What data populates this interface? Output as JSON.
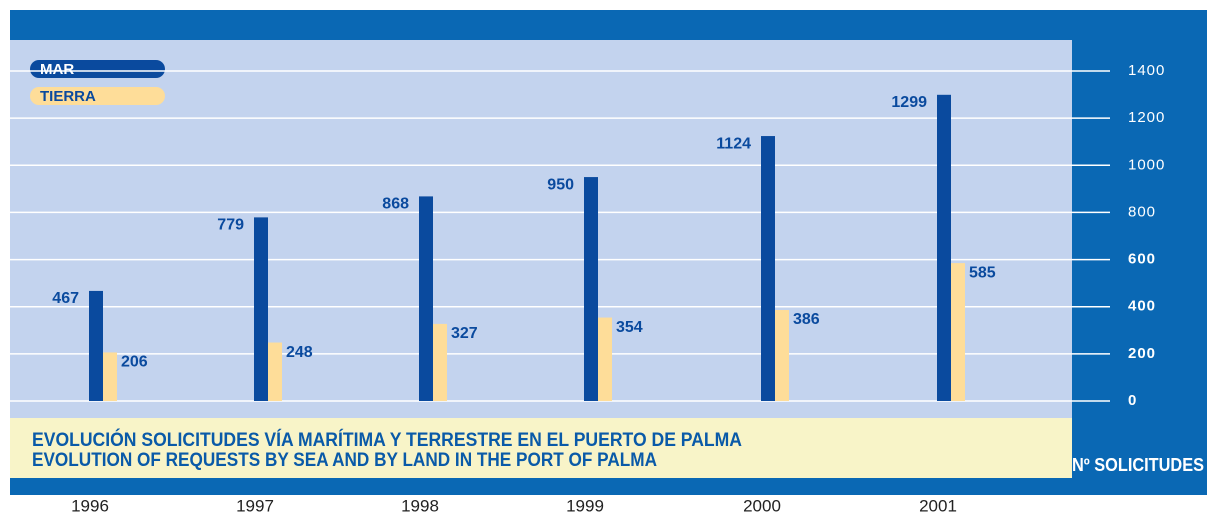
{
  "chart_data": {
    "type": "bar",
    "title": "EVOLUCIÓN SOLICITUDES VÍA MARÍTIMA Y TERRESTRE EN EL PUERTO DE PALMA",
    "subtitle": "EVOLUTION OF REQUESTS BY SEA AND BY LAND IN THE PORT OF PALMA",
    "y_label": "Nº SOLICITUDES",
    "categories": [
      "1996",
      "1997",
      "1998",
      "1999",
      "2000",
      "2001"
    ],
    "series": [
      {
        "name": "MAR",
        "color": "#0a4a9e",
        "values": [
          467,
          779,
          868,
          950,
          1124,
          1299
        ]
      },
      {
        "name": "TIERRA",
        "color": "#fedd99",
        "values": [
          206,
          248,
          327,
          354,
          386,
          585
        ]
      }
    ],
    "ylim": [
      0,
      1400
    ],
    "yticks": [
      0,
      200,
      400,
      600,
      800,
      1000,
      1200,
      1400
    ],
    "grid": true
  }
}
